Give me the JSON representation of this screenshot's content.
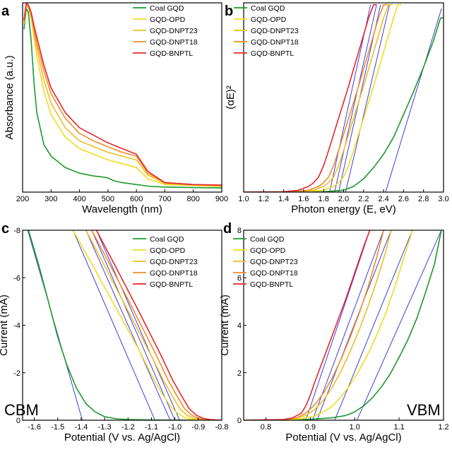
{
  "chart_data": [
    {
      "panel": "a",
      "type": "line",
      "xlabel": "Wavelength (nm)",
      "ylabel": "Absorbance (a.u.)",
      "xlim": [
        200,
        900
      ],
      "xticks": [
        "200",
        "300",
        "400",
        "500",
        "600",
        "700",
        "800",
        "900"
      ],
      "ylim": [
        0,
        1
      ],
      "yticks": [],
      "legend_position": "top-right",
      "series": [
        {
          "name": "Coal GQD",
          "color": "#1b9a2a",
          "x": [
            205,
            213,
            220,
            230,
            240,
            250,
            275,
            300,
            350,
            400,
            450,
            480,
            500,
            520,
            550,
            600,
            650,
            700,
            800,
            900
          ],
          "y": [
            0.86,
            0.97,
            0.95,
            0.8,
            0.58,
            0.42,
            0.25,
            0.19,
            0.13,
            0.1,
            0.085,
            0.08,
            0.075,
            0.06,
            0.05,
            0.04,
            0.03,
            0.027,
            0.024,
            0.022
          ]
        },
        {
          "name": "GQD-OPD",
          "color": "#f0dc1e",
          "x": [
            205,
            213,
            220,
            230,
            240,
            250,
            275,
            300,
            350,
            400,
            450,
            500,
            550,
            600,
            640,
            700,
            800,
            900
          ],
          "y": [
            0.89,
            0.99,
            0.97,
            0.92,
            0.82,
            0.72,
            0.53,
            0.41,
            0.29,
            0.23,
            0.2,
            0.17,
            0.15,
            0.13,
            0.07,
            0.04,
            0.035,
            0.03
          ]
        },
        {
          "name": "GQD-DNPT23",
          "color": "#f0bd23",
          "x": [
            205,
            213,
            220,
            230,
            240,
            250,
            275,
            300,
            350,
            400,
            450,
            500,
            550,
            600,
            640,
            700,
            800,
            900
          ],
          "y": [
            0.9,
            0.99,
            0.98,
            0.93,
            0.84,
            0.76,
            0.59,
            0.47,
            0.34,
            0.27,
            0.24,
            0.21,
            0.19,
            0.17,
            0.09,
            0.045,
            0.037,
            0.032
          ]
        },
        {
          "name": "GQD-DNPT18",
          "color": "#ee8d2a",
          "x": [
            205,
            213,
            220,
            230,
            240,
            250,
            275,
            300,
            350,
            400,
            450,
            500,
            550,
            600,
            640,
            700,
            800,
            900
          ],
          "y": [
            0.9,
            0.99,
            0.98,
            0.94,
            0.86,
            0.79,
            0.64,
            0.52,
            0.39,
            0.31,
            0.27,
            0.24,
            0.21,
            0.19,
            0.1,
            0.05,
            0.04,
            0.035
          ]
        },
        {
          "name": "GQD-BNPTL",
          "color": "#e6262c",
          "x": [
            205,
            213,
            220,
            230,
            240,
            250,
            275,
            300,
            350,
            400,
            450,
            500,
            550,
            600,
            640,
            700,
            800,
            900
          ],
          "y": [
            0.91,
            1.0,
            0.99,
            0.95,
            0.88,
            0.82,
            0.67,
            0.55,
            0.42,
            0.34,
            0.3,
            0.26,
            0.23,
            0.2,
            0.11,
            0.05,
            0.04,
            0.037
          ]
        }
      ]
    },
    {
      "panel": "b",
      "type": "line",
      "xlabel": "Photon energy (E, eV)",
      "ylabel": "(αE)²",
      "xlim": [
        1.0,
        3.0
      ],
      "xticks": [
        "1.0",
        "1.2",
        "1.4",
        "1.6",
        "1.8",
        "2.0",
        "2.2",
        "2.4",
        "2.6",
        "2.8",
        "3.0"
      ],
      "ylim": [
        0,
        1
      ],
      "yticks": [],
      "legend_position": "top-left",
      "series": [
        {
          "name": "Coal GQD",
          "color": "#1b9a2a",
          "x": [
            1.0,
            1.8,
            2.0,
            2.1,
            2.2,
            2.3,
            2.4,
            2.5,
            2.6,
            2.7,
            2.8,
            2.9,
            2.97,
            3.0
          ],
          "y": [
            0,
            0.002,
            0.01,
            0.03,
            0.07,
            0.13,
            0.2,
            0.29,
            0.41,
            0.53,
            0.66,
            0.8,
            0.92,
            0.92
          ]
        },
        {
          "name": "GQD-OPD",
          "color": "#f0dc1e",
          "x": [
            1.0,
            1.6,
            1.8,
            1.9,
            1.95,
            2.0,
            2.05,
            2.1,
            2.2,
            2.3,
            2.4,
            2.5,
            2.54,
            2.58
          ],
          "y": [
            0,
            0.002,
            0.01,
            0.03,
            0.05,
            0.08,
            0.14,
            0.22,
            0.39,
            0.56,
            0.74,
            0.92,
            0.99,
            0.99
          ]
        },
        {
          "name": "GQD-DNPT23",
          "color": "#f0bd23",
          "x": [
            1.0,
            1.55,
            1.7,
            1.8,
            1.85,
            1.9,
            1.95,
            2.0,
            2.1,
            2.2,
            2.3,
            2.4,
            2.45,
            2.49
          ],
          "y": [
            0,
            0.002,
            0.01,
            0.03,
            0.05,
            0.08,
            0.14,
            0.22,
            0.39,
            0.56,
            0.74,
            0.92,
            0.99,
            0.99
          ]
        },
        {
          "name": "GQD-DNPT18",
          "color": "#ee8d2a",
          "x": [
            1.0,
            1.5,
            1.65,
            1.75,
            1.8,
            1.85,
            1.9,
            1.95,
            2.05,
            2.15,
            2.25,
            2.35,
            2.4,
            2.44
          ],
          "y": [
            0,
            0.002,
            0.01,
            0.03,
            0.05,
            0.08,
            0.14,
            0.22,
            0.39,
            0.56,
            0.74,
            0.92,
            0.99,
            0.99
          ]
        },
        {
          "name": "GQD-BNPTL",
          "color": "#e6262c",
          "x": [
            1.0,
            1.4,
            1.55,
            1.65,
            1.7,
            1.75,
            1.8,
            1.85,
            1.95,
            2.05,
            2.15,
            2.25,
            2.3,
            2.33
          ],
          "y": [
            0,
            0.002,
            0.01,
            0.03,
            0.05,
            0.08,
            0.14,
            0.22,
            0.39,
            0.56,
            0.74,
            0.92,
            0.99,
            0.99
          ]
        }
      ],
      "fit_lines": [
        {
          "color": "#2a2ad8",
          "x": [
            2.42,
            2.98
          ],
          "y": [
            0,
            0.97
          ]
        },
        {
          "color": "#2a2ad8",
          "x": [
            2.02,
            2.46
          ],
          "y": [
            0,
            0.99
          ]
        },
        {
          "color": "#2a2ad8",
          "x": [
            1.95,
            2.37
          ],
          "y": [
            0,
            0.99
          ]
        },
        {
          "color": "#2a2ad8",
          "x": [
            1.91,
            2.33
          ],
          "y": [
            0,
            0.99
          ]
        },
        {
          "color": "#2a2ad8",
          "x": [
            1.86,
            2.27
          ],
          "y": [
            0,
            0.99
          ]
        }
      ]
    },
    {
      "panel": "c",
      "type": "line",
      "xlabel": "Potential (V vs. Ag/AgCl)",
      "ylabel": "Current (mA)",
      "xlim": [
        -1.65,
        -0.8
      ],
      "xticks": [
        "-1.6",
        "-1.5",
        "-1.4",
        "-1.3",
        "-1.2",
        "-1.1",
        "-1.0",
        "-0.9",
        "-0.8"
      ],
      "ylim": [
        0,
        -8
      ],
      "yticks": [
        "0",
        "-2",
        "-4",
        "-6",
        "-8"
      ],
      "corner_label": "CBM",
      "legend_position": "top-right",
      "series": [
        {
          "name": "Coal GQD",
          "color": "#1b9a2a",
          "x": [
            -1.625,
            -1.58,
            -1.54,
            -1.5,
            -1.46,
            -1.42,
            -1.38,
            -1.34,
            -1.3,
            -1.25,
            -1.2,
            -1.1,
            -1.0,
            -0.9,
            -0.8
          ],
          "y": [
            -8,
            -6.5,
            -5.0,
            -3.5,
            -2.3,
            -1.35,
            -0.7,
            -0.35,
            -0.15,
            -0.06,
            -0.03,
            -0.01,
            -0.005,
            0,
            0
          ]
        },
        {
          "name": "GQD-OPD",
          "color": "#f0dc1e",
          "x": [
            -1.435,
            -1.35,
            -1.25,
            -1.15,
            -1.1,
            -1.06,
            -1.02,
            -0.99,
            -0.96,
            -0.93,
            -0.9,
            -0.85,
            -0.8
          ],
          "y": [
            -8,
            -6.5,
            -4.7,
            -2.9,
            -1.9,
            -1.2,
            -0.6,
            -0.3,
            -0.12,
            -0.05,
            -0.02,
            -0.01,
            0
          ]
        },
        {
          "name": "GQD-DNPT23",
          "color": "#f0bd23",
          "x": [
            -1.38,
            -1.3,
            -1.2,
            -1.1,
            -1.05,
            -1.01,
            -0.98,
            -0.95,
            -0.92,
            -0.89,
            -0.85,
            -0.8
          ],
          "y": [
            -8,
            -6.5,
            -4.6,
            -2.7,
            -1.7,
            -1.0,
            -0.5,
            -0.22,
            -0.08,
            -0.03,
            -0.01,
            0
          ]
        },
        {
          "name": "GQD-DNPT18",
          "color": "#ee8d2a",
          "x": [
            -1.355,
            -1.28,
            -1.18,
            -1.08,
            -1.03,
            -0.99,
            -0.96,
            -0.93,
            -0.9,
            -0.87,
            -0.83,
            -0.8
          ],
          "y": [
            -8,
            -6.6,
            -4.7,
            -2.75,
            -1.7,
            -1.0,
            -0.5,
            -0.22,
            -0.08,
            -0.03,
            -0.01,
            0
          ]
        },
        {
          "name": "GQD-BNPTL",
          "color": "#e6262c",
          "x": [
            -1.335,
            -1.26,
            -1.16,
            -1.06,
            -1.01,
            -0.97,
            -0.94,
            -0.91,
            -0.88,
            -0.85,
            -0.82,
            -0.8
          ],
          "y": [
            -8,
            -6.6,
            -4.7,
            -2.75,
            -1.7,
            -1.0,
            -0.5,
            -0.22,
            -0.08,
            -0.03,
            -0.01,
            0
          ]
        }
      ],
      "fit_lines": [
        {
          "color": "#2a2ad8",
          "x": [
            -1.628,
            -1.395
          ],
          "y": [
            -8,
            0
          ]
        },
        {
          "color": "#2a2ad8",
          "x": [
            -1.435,
            -1.085
          ],
          "y": [
            -8,
            0
          ]
        },
        {
          "color": "#2a2ad8",
          "x": [
            -1.38,
            -1.02
          ],
          "y": [
            -8,
            0
          ]
        },
        {
          "color": "#2a2ad8",
          "x": [
            -1.355,
            -1.0
          ],
          "y": [
            -8,
            0
          ]
        },
        {
          "color": "#2a2ad8",
          "x": [
            -1.335,
            -0.98
          ],
          "y": [
            -8,
            0
          ]
        }
      ]
    },
    {
      "panel": "d",
      "type": "line",
      "xlabel": "Potential (V vs. Ag/AgCl)",
      "ylabel": "Current (mA)",
      "xlim": [
        0.75,
        1.2
      ],
      "xticks": [
        "0.8",
        "0.9",
        "1.0",
        "1.1",
        "1.2"
      ],
      "ylim": [
        0,
        8
      ],
      "yticks": [
        "0",
        "2",
        "4",
        "6",
        "8"
      ],
      "corner_label": "VBM",
      "legend_position": "top-left",
      "series": [
        {
          "name": "Coal GQD",
          "color": "#1b9a2a",
          "x": [
            0.75,
            0.85,
            0.9,
            0.95,
            0.98,
            1.0,
            1.02,
            1.04,
            1.06,
            1.08,
            1.1,
            1.12,
            1.14,
            1.16,
            1.18,
            1.195
          ],
          "y": [
            0,
            0.01,
            0.04,
            0.1,
            0.2,
            0.35,
            0.6,
            0.95,
            1.4,
            1.95,
            2.65,
            3.4,
            4.3,
            5.4,
            6.6,
            8
          ]
        },
        {
          "name": "GQD-OPD",
          "color": "#f0dc1e",
          "x": [
            0.75,
            0.85,
            0.88,
            0.91,
            0.93,
            0.95,
            0.97,
            0.99,
            1.01,
            1.03,
            1.05,
            1.07,
            1.09,
            1.11,
            1.13
          ],
          "y": [
            0,
            0.02,
            0.06,
            0.18,
            0.35,
            0.6,
            1.0,
            1.5,
            2.1,
            2.8,
            3.6,
            4.5,
            5.6,
            6.8,
            8
          ]
        },
        {
          "name": "GQD-DNPT23",
          "color": "#f0bd23",
          "x": [
            0.75,
            0.84,
            0.87,
            0.89,
            0.91,
            0.93,
            0.95,
            0.97,
            0.99,
            1.01,
            1.03,
            1.05,
            1.07,
            1.082
          ],
          "y": [
            0,
            0.02,
            0.08,
            0.2,
            0.45,
            0.85,
            1.4,
            2.1,
            2.9,
            3.8,
            4.8,
            5.9,
            7.1,
            8
          ]
        },
        {
          "name": "GQD-DNPT18",
          "color": "#ee8d2a",
          "x": [
            0.75,
            0.84,
            0.87,
            0.89,
            0.91,
            0.93,
            0.95,
            0.97,
            0.99,
            1.01,
            1.03,
            1.05,
            1.065
          ],
          "y": [
            0,
            0.02,
            0.1,
            0.3,
            0.65,
            1.15,
            1.8,
            2.6,
            3.5,
            4.5,
            5.6,
            6.9,
            8
          ]
        },
        {
          "name": "GQD-BNPTL",
          "color": "#e6262c",
          "x": [
            0.75,
            0.84,
            0.86,
            0.88,
            0.89,
            0.9,
            0.91,
            0.92,
            0.94,
            0.96,
            0.98,
            1.0,
            1.02,
            1.034
          ],
          "y": [
            0,
            0.03,
            0.1,
            0.3,
            0.6,
            1.05,
            1.6,
            2.1,
            3.1,
            4.1,
            5.1,
            6.2,
            7.3,
            8
          ]
        }
      ],
      "fit_lines": [
        {
          "color": "#2a2ad8",
          "x": [
            1.005,
            1.195
          ],
          "y": [
            0,
            8
          ]
        },
        {
          "color": "#2a2ad8",
          "x": [
            0.955,
            1.13
          ],
          "y": [
            0,
            8
          ]
        },
        {
          "color": "#2a2ad8",
          "x": [
            0.915,
            1.082
          ],
          "y": [
            0,
            8
          ]
        },
        {
          "color": "#2a2ad8",
          "x": [
            0.905,
            1.065
          ],
          "y": [
            0,
            8
          ]
        },
        {
          "color": "#2a2ad8",
          "x": [
            0.89,
            1.034
          ],
          "y": [
            0,
            8
          ]
        }
      ]
    }
  ]
}
